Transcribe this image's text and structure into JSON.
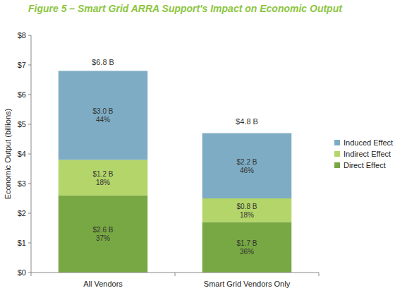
{
  "chart_data": {
    "type": "bar",
    "stacked": true,
    "data_labels": true,
    "grid": false,
    "legend": "right",
    "title": "Figure 5 – Smart Grid ARRA Support's Impact on Economic Output",
    "y_label": "Economic Output (billions)",
    "categories": [
      "All Vendors",
      "Smart Grid Vendors Only"
    ],
    "ylim": [
      0,
      8
    ],
    "yticks": [
      {
        "value": 0,
        "label": "$0"
      },
      {
        "value": 1,
        "label": "$1"
      },
      {
        "value": 2,
        "label": "$2"
      },
      {
        "value": 3,
        "label": "$3"
      },
      {
        "value": 4,
        "label": "$4"
      },
      {
        "value": 5,
        "label": "$5"
      },
      {
        "value": 6,
        "label": "$6"
      },
      {
        "value": 7,
        "label": "$7"
      },
      {
        "value": 8,
        "label": "$8"
      }
    ],
    "series": [
      {
        "name": "Direct Effect",
        "color": "#77a843",
        "values": [
          2.6,
          1.7
        ],
        "value_labels": [
          "$2.6 B",
          "$1.7 B"
        ],
        "shares": [
          37,
          36
        ],
        "share_labels": [
          "37%",
          "36%"
        ]
      },
      {
        "name": "Indirect Effect",
        "color": "#b3d56a",
        "values": [
          1.2,
          0.8
        ],
        "value_labels": [
          "$1.2 B",
          "$0.8 B"
        ],
        "shares": [
          18,
          18
        ],
        "share_labels": [
          "18%",
          "18%"
        ]
      },
      {
        "name": "Induced Effect",
        "color": "#7eacc4",
        "values": [
          3.0,
          2.2
        ],
        "value_labels": [
          "$3.0 B",
          "$2.2 B"
        ],
        "shares": [
          44,
          46
        ],
        "share_labels": [
          "44%",
          "46%"
        ]
      }
    ],
    "totals": [
      6.8,
      4.8
    ],
    "total_labels": [
      "$6.8 B",
      "$4.8 B"
    ]
  }
}
